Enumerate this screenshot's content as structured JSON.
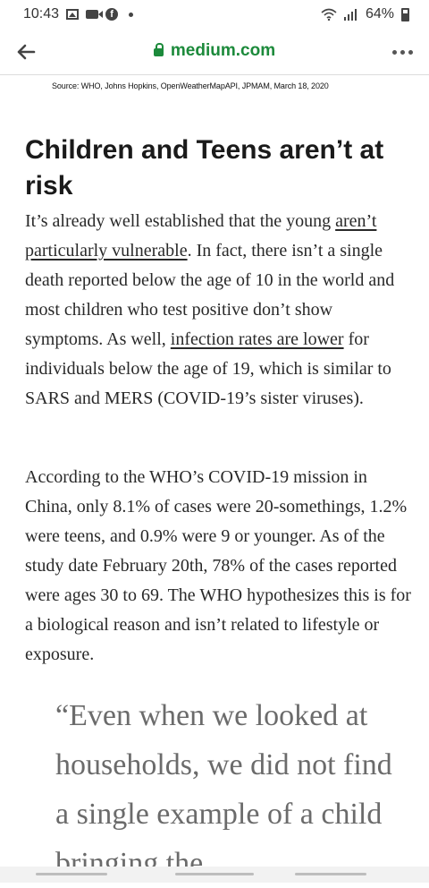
{
  "status_bar": {
    "time": "10:43",
    "battery": "64%",
    "icons": [
      "gallery-icon",
      "video-icon",
      "facebook-icon",
      "dot-icon",
      "wifi-icon",
      "signal-icon",
      "battery-icon"
    ]
  },
  "browser": {
    "domain": "medium.com",
    "icons": [
      "back-arrow-icon",
      "lock-icon",
      "more-icon"
    ],
    "accent_color": "#1c8a3b"
  },
  "article": {
    "source_caption": "Source: WHO, Johns Hopkins, OpenWeatherMapAPI, JPMAM, March 18, 2020",
    "heading": "Children and Teens aren’t at risk",
    "p1_before_link1": "It’s already well established that the young ",
    "p1_link1": "aren’t particularly vulnerable",
    "p1_after_link1": ". In fact, there isn’t a single death reported below the age of 10 in the world and most children who test positive don’t show symptoms. As well, ",
    "p1_link2": "infection rates are lower",
    "p1_after_link2": " for individuals below the age of 19, which is similar to SARS and MERS (COVID-19’s sister viruses).",
    "p2": "According to the WHO’s COVID-19 mission in China, only 8.1% of cases were 20-somethings, 1.2% were teens, and 0.9% were 9 or younger. As of the study date February 20th, 78% of the cases reported were ages 30 to 69. The WHO hypothesizes this is for a biological reason and isn’t related to lifestyle or exposure.",
    "quote": "“Even when we looked at households, we did not find a single example of a child bringing the"
  }
}
